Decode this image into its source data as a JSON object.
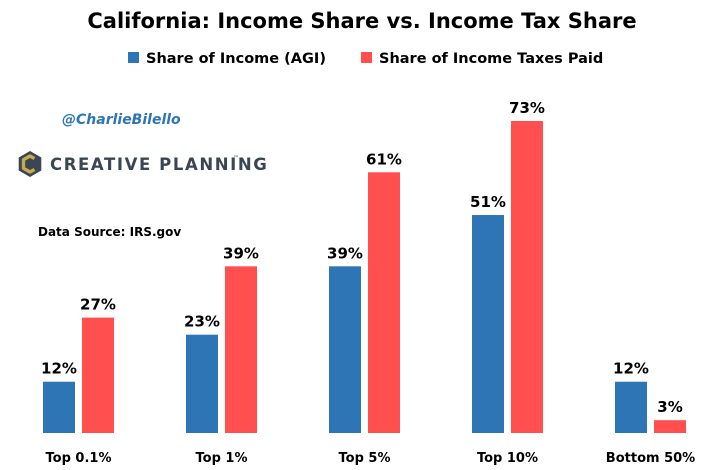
{
  "chart_data": {
    "type": "bar",
    "title": "California: Income Share vs. Income Tax Share",
    "categories": [
      "Top 0.1%",
      "Top 1%",
      "Top 5%",
      "Top 10%",
      "Bottom 50%"
    ],
    "series": [
      {
        "name": "Share of Income (AGI)",
        "color": "#2e75b6",
        "values": [
          12,
          23,
          39,
          51,
          12
        ]
      },
      {
        "name": "Share of Income Taxes Paid",
        "color": "#ff4f4f",
        "values": [
          27,
          39,
          61,
          73,
          3
        ]
      }
    ],
    "value_suffix": "%",
    "xlabel": "",
    "ylabel": "",
    "ylim": [
      0,
      80
    ],
    "grid": false,
    "legend_position": "top-center"
  },
  "annotations": {
    "handle": "@CharlieBilello",
    "brand": "CREATIVE PLANNING",
    "brand_mark": "™",
    "source": "Data Source: IRS.gov"
  },
  "colors": {
    "logo_dark": "#3a4654",
    "logo_gold": "#c9a94a"
  }
}
